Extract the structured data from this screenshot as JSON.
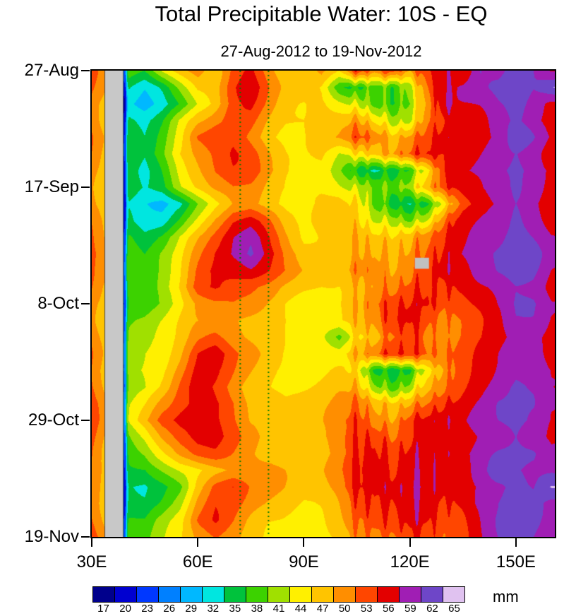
{
  "chart_data": {
    "type": "heatmap",
    "title": "Total Precipitable Water: 10S - EQ",
    "subtitle": "27-Aug-2012 to 19-Nov-2012",
    "x_axis": {
      "range": [
        30,
        161
      ],
      "ticks": [
        {
          "label": "30E",
          "lon": 30
        },
        {
          "label": "60E",
          "lon": 60
        },
        {
          "label": "90E",
          "lon": 90
        },
        {
          "label": "120E",
          "lon": 120
        },
        {
          "label": "150E",
          "lon": 150
        }
      ]
    },
    "y_axis": {
      "range": [
        0,
        84
      ],
      "ticks": [
        {
          "label": "27-Aug",
          "day": 0
        },
        {
          "label": "17-Sep",
          "day": 21
        },
        {
          "label": "8-Oct",
          "day": 42
        },
        {
          "label": "29-Oct",
          "day": 63
        },
        {
          "label": "19-Nov",
          "day": 84
        }
      ]
    },
    "colorbar": {
      "unit": "mm",
      "labels": [
        17,
        20,
        23,
        26,
        29,
        32,
        35,
        38,
        41,
        44,
        47,
        50,
        53,
        56,
        59,
        62,
        65
      ]
    },
    "levels": [
      17,
      20,
      23,
      26,
      29,
      32,
      35,
      38,
      41,
      44,
      47,
      50,
      53,
      56,
      59,
      62,
      65
    ],
    "palette": [
      "#00008c",
      "#0000d0",
      "#0038ff",
      "#0080ff",
      "#00b8ff",
      "#00e6e0",
      "#00c23c",
      "#3cd200",
      "#a0e000",
      "#fff000",
      "#ffc400",
      "#ff8e00",
      "#ff4600",
      "#e30000",
      "#a01eb4",
      "#6e46c8",
      "#e0c2f0"
    ],
    "land_band": {
      "lon_min": 33.6,
      "lon_max": 38.8,
      "color": "#c8c8c8"
    },
    "missing_box": {
      "lon_min": 121.4,
      "lon_max": 125.4,
      "day_min": 33.7,
      "day_max": 35.7,
      "color": "#c0c0c0"
    },
    "reference_lines": {
      "lons": [
        72,
        80
      ],
      "color": "#007a00",
      "style": "dotted"
    },
    "lon_streaks": [
      {
        "lon": 39.3,
        "amp": -16,
        "sigma": 0.4
      },
      {
        "lon": 104.5,
        "amp": 3,
        "sigma": 0.6
      },
      {
        "lon": 108,
        "amp": 2.5,
        "sigma": 0.5
      },
      {
        "lon": 113,
        "amp": 3,
        "sigma": 0.6
      },
      {
        "lon": 117.5,
        "amp": 2,
        "sigma": 0.5
      },
      {
        "lon": 122,
        "amp": 3,
        "sigma": 0.6
      },
      {
        "lon": 127,
        "amp": 2,
        "sigma": 0.5
      },
      {
        "lon": 131,
        "amp": 2,
        "sigma": 0.5
      }
    ],
    "grid": {
      "lon_start": 30,
      "lon_step": 5,
      "day_start": 0,
      "day_step": 3,
      "units": "mm",
      "values": [
        [
          53,
          48,
          38,
          36,
          42,
          46,
          50,
          46,
          52,
          55,
          50,
          46,
          45,
          49,
          46,
          54,
          50,
          54,
          50,
          55,
          57,
          55,
          61,
          58,
          62,
          60,
          57
        ],
        [
          52,
          47,
          34,
          31,
          34,
          40,
          46,
          47,
          53,
          56,
          51,
          47,
          46,
          45,
          38,
          36,
          39,
          37,
          42,
          52,
          56,
          58,
          60,
          62,
          63,
          61,
          64
        ],
        [
          51,
          46,
          32,
          30,
          32,
          36,
          42,
          46,
          52,
          54,
          50,
          46,
          45,
          46,
          44,
          42,
          38,
          36,
          40,
          50,
          57,
          58,
          59,
          61,
          62,
          60,
          57
        ],
        [
          52,
          46,
          35,
          33,
          36,
          42,
          47,
          50,
          53,
          52,
          48,
          46,
          45,
          46,
          47,
          48,
          44,
          40,
          42,
          52,
          55,
          57,
          58,
          60,
          61,
          59,
          56
        ],
        [
          53,
          47,
          36,
          34,
          38,
          44,
          52,
          55,
          54,
          50,
          46,
          44,
          44,
          46,
          48,
          52,
          50,
          46,
          50,
          54,
          56,
          55,
          57,
          59,
          62,
          61,
          58
        ],
        [
          52,
          46,
          37,
          35,
          40,
          46,
          50,
          53,
          55,
          52,
          48,
          45,
          44,
          45,
          42,
          44,
          46,
          48,
          52,
          55,
          54,
          56,
          58,
          60,
          61,
          60,
          57
        ],
        [
          51,
          46,
          36,
          34,
          38,
          44,
          48,
          52,
          54,
          53,
          49,
          46,
          44,
          44,
          40,
          34,
          32,
          33,
          36,
          44,
          54,
          57,
          59,
          61,
          62,
          60,
          58
        ],
        [
          50,
          45,
          36,
          34,
          36,
          42,
          46,
          50,
          52,
          51,
          48,
          46,
          45,
          44,
          42,
          40,
          38,
          36,
          40,
          48,
          53,
          56,
          58,
          60,
          61,
          59,
          57
        ],
        [
          50,
          45,
          33,
          31,
          30,
          33,
          40,
          46,
          50,
          50,
          47,
          45,
          44,
          45,
          46,
          44,
          38,
          34,
          33,
          36,
          44,
          52,
          56,
          58,
          60,
          58,
          56
        ],
        [
          51,
          46,
          34,
          32,
          33,
          38,
          44,
          50,
          55,
          56,
          52,
          47,
          45,
          46,
          47,
          46,
          42,
          40,
          38,
          42,
          50,
          55,
          57,
          59,
          61,
          59,
          57
        ],
        [
          52,
          47,
          37,
          35,
          38,
          43,
          48,
          53,
          58,
          60,
          55,
          50,
          46,
          46,
          47,
          48,
          46,
          44,
          46,
          50,
          53,
          56,
          58,
          60,
          62,
          60,
          58
        ],
        [
          53,
          48,
          38,
          36,
          40,
          44,
          50,
          55,
          59,
          62,
          57,
          52,
          48,
          46,
          46,
          48,
          48,
          46,
          48,
          52,
          55,
          57,
          59,
          61,
          62,
          61,
          58
        ],
        [
          52,
          47,
          38,
          36,
          40,
          45,
          52,
          56,
          57,
          58,
          55,
          52,
          49,
          47,
          47,
          50,
          50,
          48,
          50,
          54,
          56,
          55,
          58,
          60,
          61,
          60,
          57
        ],
        [
          51,
          46,
          37,
          36,
          41,
          46,
          53,
          55,
          54,
          52,
          50,
          48,
          47,
          46,
          46,
          48,
          50,
          50,
          52,
          54,
          53,
          54,
          56,
          58,
          60,
          59,
          56
        ],
        [
          50,
          46,
          36,
          37,
          40,
          44,
          48,
          50,
          51,
          50,
          48,
          46,
          45,
          45,
          46,
          48,
          52,
          53,
          54,
          55,
          52,
          53,
          55,
          58,
          61,
          60,
          57
        ],
        [
          50,
          45,
          38,
          39,
          42,
          45,
          47,
          48,
          49,
          48,
          47,
          46,
          45,
          44,
          45,
          47,
          50,
          54,
          55,
          53,
          51,
          52,
          54,
          57,
          60,
          59,
          56
        ],
        [
          51,
          46,
          39,
          40,
          43,
          46,
          50,
          52,
          50,
          48,
          46,
          45,
          44,
          43,
          38,
          45,
          48,
          52,
          54,
          52,
          50,
          52,
          54,
          56,
          59,
          58,
          55
        ],
        [
          52,
          47,
          40,
          42,
          44,
          48,
          54,
          56,
          52,
          49,
          46,
          44,
          44,
          44,
          44,
          48,
          52,
          55,
          54,
          52,
          51,
          53,
          55,
          58,
          61,
          59,
          56
        ],
        [
          52,
          47,
          41,
          43,
          45,
          50,
          55,
          54,
          51,
          48,
          45,
          44,
          44,
          45,
          46,
          44,
          36,
          34,
          35,
          44,
          50,
          54,
          56,
          59,
          61,
          60,
          57
        ],
        [
          53,
          48,
          40,
          42,
          46,
          52,
          56,
          53,
          50,
          47,
          45,
          44,
          45,
          46,
          47,
          46,
          40,
          37,
          40,
          48,
          52,
          55,
          57,
          60,
          62,
          60,
          57
        ],
        [
          54,
          49,
          42,
          45,
          50,
          54,
          56,
          55,
          52,
          48,
          46,
          45,
          46,
          47,
          48,
          50,
          48,
          46,
          48,
          52,
          55,
          56,
          58,
          61,
          62,
          61,
          58
        ],
        [
          54,
          49,
          43,
          48,
          54,
          57,
          58,
          55,
          52,
          48,
          46,
          45,
          46,
          48,
          50,
          52,
          50,
          48,
          52,
          55,
          56,
          57,
          59,
          61,
          63,
          61,
          58
        ],
        [
          53,
          48,
          40,
          44,
          50,
          54,
          56,
          55,
          53,
          50,
          47,
          45,
          46,
          48,
          50,
          52,
          53,
          50,
          52,
          54,
          55,
          56,
          58,
          60,
          62,
          60,
          57
        ],
        [
          52,
          47,
          38,
          40,
          45,
          50,
          53,
          54,
          52,
          50,
          48,
          46,
          46,
          47,
          49,
          52,
          54,
          52,
          54,
          55,
          56,
          57,
          59,
          61,
          62,
          61,
          58
        ],
        [
          51,
          46,
          36,
          36,
          40,
          44,
          46,
          48,
          50,
          51,
          50,
          48,
          47,
          48,
          50,
          53,
          55,
          54,
          55,
          56,
          55,
          56,
          58,
          62,
          61,
          60,
          60
        ],
        [
          50,
          45,
          34,
          33,
          36,
          40,
          48,
          53,
          55,
          52,
          50,
          48,
          47,
          48,
          50,
          54,
          55,
          55,
          56,
          55,
          54,
          55,
          57,
          59,
          62,
          61,
          64
        ],
        [
          50,
          45,
          35,
          34,
          37,
          42,
          50,
          54,
          53,
          51,
          49,
          47,
          46,
          47,
          49,
          52,
          54,
          54,
          55,
          54,
          53,
          55,
          58,
          60,
          63,
          62,
          59
        ],
        [
          51,
          46,
          37,
          36,
          40,
          44,
          52,
          55,
          52,
          49,
          47,
          46,
          45,
          46,
          48,
          50,
          52,
          53,
          55,
          54,
          52,
          54,
          57,
          60,
          62,
          61,
          58
        ],
        [
          52,
          47,
          38,
          37,
          41,
          45,
          50,
          52,
          50,
          48,
          46,
          45,
          44,
          45,
          47,
          49,
          51,
          52,
          54,
          53,
          51,
          53,
          56,
          59,
          61,
          60,
          57
        ]
      ]
    }
  }
}
